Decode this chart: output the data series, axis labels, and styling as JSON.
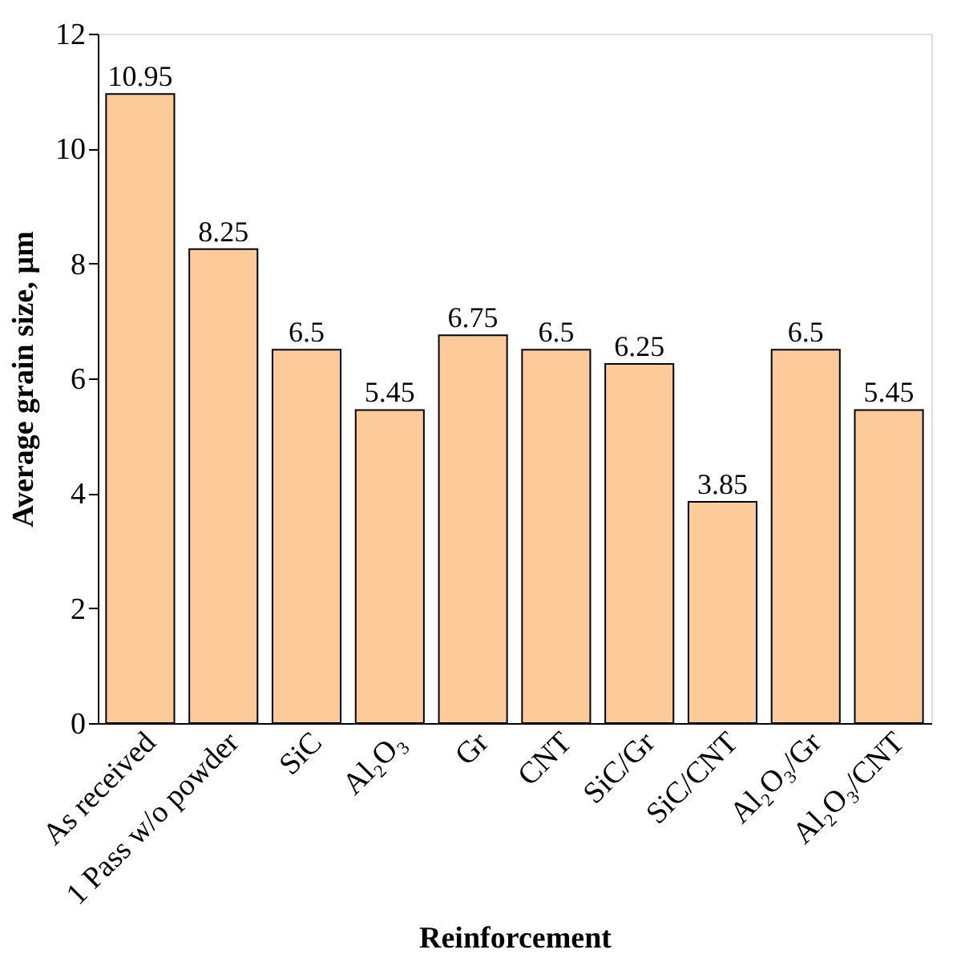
{
  "chart_data": {
    "type": "bar",
    "xlabel": "Reinforcement",
    "ylabel": "Average grain size, µm",
    "categories": [
      "As received",
      "1 Pass w/o powder",
      "SiC",
      "Al₂O₃",
      "Gr",
      "CNT",
      "SiC/Gr",
      "SiC/CNT",
      "Al₂O₃/Gr",
      "Al₂O₃/CNT"
    ],
    "values": [
      10.95,
      8.25,
      6.5,
      5.45,
      6.75,
      6.5,
      6.25,
      3.85,
      6.5,
      5.45
    ],
    "color": "#fdcb99",
    "ylim": [
      0,
      12
    ],
    "yticks": [
      0,
      2,
      4,
      6,
      8,
      10,
      12
    ],
    "grid": false,
    "data_labels": true
  }
}
